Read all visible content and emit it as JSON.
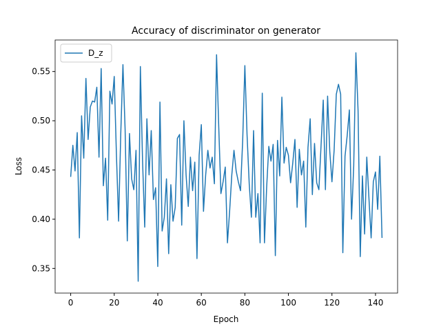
{
  "chart_data": {
    "type": "line",
    "title": "Accuracy of discriminator on generator",
    "xlabel": "Epoch",
    "ylabel": "Loss",
    "xlim": [
      -7.15,
      150.15
    ],
    "xticks": [
      0,
      20,
      40,
      60,
      80,
      100,
      120,
      140
    ],
    "ylim": [
      0.325,
      0.582
    ],
    "yticks": [
      0.35,
      {
        "value": 0.4,
        "label": "0.40"
      },
      0.45,
      {
        "value": 0.5,
        "label": "0.50"
      },
      0.55
    ],
    "legend": "upper left",
    "series": [
      {
        "name": "D_z",
        "color": "#1f77b4",
        "values": [
          0.443,
          0.475,
          0.449,
          0.488,
          0.381,
          0.505,
          0.462,
          0.543,
          0.481,
          0.514,
          0.52,
          0.519,
          0.534,
          0.463,
          0.553,
          0.434,
          0.462,
          0.399,
          0.53,
          0.517,
          0.545,
          0.466,
          0.398,
          0.487,
          0.557,
          0.491,
          0.378,
          0.487,
          0.441,
          0.43,
          0.47,
          0.337,
          0.555,
          0.46,
          0.392,
          0.502,
          0.445,
          0.49,
          0.42,
          0.432,
          0.352,
          0.519,
          0.388,
          0.402,
          0.441,
          0.365,
          0.435,
          0.398,
          0.412,
          0.482,
          0.486,
          0.394,
          0.5,
          0.445,
          0.413,
          0.463,
          0.429,
          0.458,
          0.36,
          0.465,
          0.496,
          0.408,
          0.445,
          0.47,
          0.452,
          0.463,
          0.436,
          0.567,
          0.494,
          0.426,
          0.438,
          0.453,
          0.376,
          0.408,
          0.445,
          0.47,
          0.449,
          0.438,
          0.429,
          0.48,
          0.556,
          0.486,
          0.436,
          0.402,
          0.49,
          0.402,
          0.426,
          0.376,
          0.528,
          0.376,
          0.432,
          0.474,
          0.459,
          0.476,
          0.363,
          0.48,
          0.444,
          0.524,
          0.457,
          0.473,
          0.465,
          0.437,
          0.457,
          0.481,
          0.412,
          0.471,
          0.445,
          0.459,
          0.392,
          0.473,
          0.502,
          0.425,
          0.477,
          0.437,
          0.43,
          0.475,
          0.521,
          0.43,
          0.525,
          0.469,
          0.438,
          0.47,
          0.527,
          0.537,
          0.527,
          0.366,
          0.464,
          0.485,
          0.511,
          0.4,
          0.454,
          0.569,
          0.51,
          0.362,
          0.444,
          0.385,
          0.463,
          0.421,
          0.381,
          0.438,
          0.448,
          0.41,
          0.464,
          0.381
        ]
      }
    ]
  }
}
